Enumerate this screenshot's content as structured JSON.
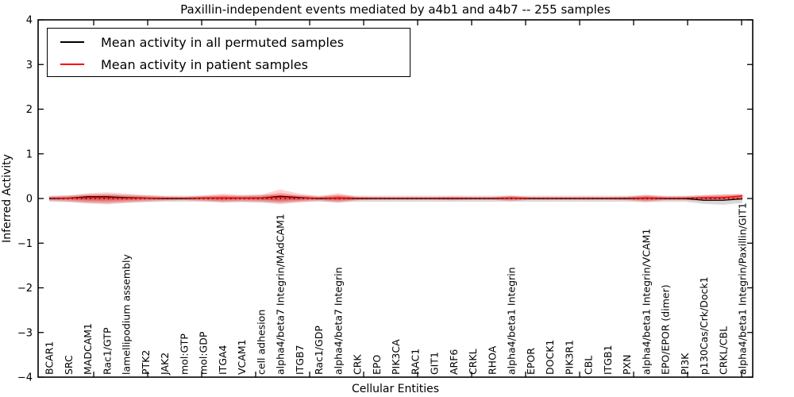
{
  "chart_data": {
    "type": "line",
    "title": "Paxillin-independent events mediated by a4b1 and a4b7 -- 255 samples",
    "xlabel": "Cellular Entities",
    "ylabel": "Inferred Activity",
    "ylim": [
      -4,
      4
    ],
    "yticks": [
      "4",
      "3",
      "2",
      "1",
      "0",
      "−1",
      "−2",
      "−3",
      "−4"
    ],
    "grid": false,
    "legend_position": "upper left",
    "categories": [
      "BCAR1",
      "SRC",
      "MADCAM1",
      "Rac1/GTP",
      "lamellipodium assembly",
      "PTK2",
      "JAK2",
      "mol:GTP",
      "mol:GDP",
      "ITGA4",
      "VCAM1",
      "cell adhesion",
      "alpha4/beta7 Integrin/MAdCAM1",
      "ITGB7",
      "Rac1/GDP",
      "alpha4/beta7 Integrin",
      "CRK",
      "EPO",
      "PIK3CA",
      "RAC1",
      "GIT1",
      "ARF6",
      "CRKL",
      "RHOA",
      "alpha4/beta1 Integrin",
      "EPOR",
      "DOCK1",
      "PIK3R1",
      "CBL",
      "ITGB1",
      "PXN",
      "alpha4/beta1 Integrin/VCAM1",
      "EPO/EPOR (dimer)",
      "PI3K",
      "p130Cas/Crk/Dock1",
      "CRKL/CBL",
      "alpha4/beta1 Integrin/Paxillin/GIT1"
    ],
    "series": [
      {
        "name": "Mean activity in all permuted samples",
        "color": "#000000",
        "values": [
          0,
          0.01,
          0.04,
          0.04,
          0.02,
          0.01,
          0,
          0,
          0.01,
          0.01,
          0.01,
          0.01,
          0.05,
          0.02,
          0,
          0.01,
          0,
          0,
          0,
          0,
          0,
          0,
          0,
          0,
          0.01,
          0,
          0,
          0,
          0,
          0,
          0,
          0.01,
          0,
          0,
          -0.04,
          -0.04,
          -0.01
        ]
      },
      {
        "name": "Mean activity in patient samples",
        "color": "#ff0000",
        "values": [
          0.01,
          0.01,
          0.02,
          0.02,
          0.01,
          0.01,
          0.01,
          0.01,
          0.01,
          0.01,
          0.01,
          0.01,
          0.03,
          0.01,
          0.01,
          0.01,
          0.01,
          0.01,
          0.01,
          0.01,
          0.01,
          0.01,
          0.01,
          0.01,
          0.01,
          0.01,
          0.01,
          0.01,
          0.01,
          0.01,
          0.01,
          0.01,
          0.01,
          0.01,
          0.02,
          0.02,
          0.06
        ]
      }
    ],
    "bands": [
      {
        "name": "permuted-range",
        "color": "rgba(130,130,130,0.30)",
        "upper": [
          0.06,
          0.07,
          0.09,
          0.1,
          0.08,
          0.07,
          0.06,
          0.06,
          0.06,
          0.07,
          0.07,
          0.08,
          0.09,
          0.07,
          0.06,
          0.07,
          0.06,
          0.06,
          0.06,
          0.06,
          0.06,
          0.06,
          0.06,
          0.06,
          0.06,
          0.06,
          0.06,
          0.06,
          0.06,
          0.06,
          0.06,
          0.07,
          0.06,
          0.06,
          0.07,
          0.08,
          0.09
        ],
        "lower": [
          -0.07,
          -0.08,
          -0.1,
          -0.11,
          -0.09,
          -0.08,
          -0.07,
          -0.07,
          -0.07,
          -0.08,
          -0.08,
          -0.09,
          -0.1,
          -0.08,
          -0.07,
          -0.08,
          -0.07,
          -0.07,
          -0.07,
          -0.07,
          -0.07,
          -0.07,
          -0.07,
          -0.07,
          -0.07,
          -0.07,
          -0.07,
          -0.07,
          -0.07,
          -0.07,
          -0.07,
          -0.08,
          -0.07,
          -0.07,
          -0.12,
          -0.14,
          -0.1
        ]
      },
      {
        "name": "patient-range-outer",
        "color": "rgba(255,0,0,0.17)",
        "upper": [
          0.05,
          0.07,
          0.12,
          0.14,
          0.11,
          0.08,
          0.05,
          0.04,
          0.07,
          0.11,
          0.08,
          0.09,
          0.2,
          0.11,
          0.05,
          0.12,
          0.04,
          0.03,
          0.03,
          0.03,
          0.03,
          0.04,
          0.03,
          0.03,
          0.07,
          0.03,
          0.03,
          0.03,
          0.03,
          0.03,
          0.04,
          0.09,
          0.05,
          0.05,
          0.08,
          0.1,
          0.11
        ],
        "lower": [
          -0.05,
          -0.07,
          -0.11,
          -0.13,
          -0.1,
          -0.07,
          -0.05,
          -0.04,
          -0.06,
          -0.09,
          -0.07,
          -0.08,
          -0.13,
          -0.08,
          -0.05,
          -0.1,
          -0.04,
          -0.03,
          -0.03,
          -0.03,
          -0.03,
          -0.04,
          -0.03,
          -0.03,
          -0.06,
          -0.03,
          -0.03,
          -0.03,
          -0.03,
          -0.03,
          -0.04,
          -0.08,
          -0.04,
          -0.04,
          -0.05,
          -0.04,
          -0.03
        ]
      },
      {
        "name": "patient-range-mid",
        "color": "rgba(255,0,0,0.22)",
        "upper": [
          0.03,
          0.045,
          0.08,
          0.09,
          0.07,
          0.05,
          0.03,
          0.025,
          0.045,
          0.07,
          0.05,
          0.06,
          0.13,
          0.07,
          0.03,
          0.08,
          0.025,
          0.02,
          0.02,
          0.02,
          0.02,
          0.025,
          0.02,
          0.02,
          0.045,
          0.02,
          0.02,
          0.02,
          0.02,
          0.02,
          0.025,
          0.06,
          0.03,
          0.03,
          0.05,
          0.065,
          0.075
        ],
        "lower": [
          -0.03,
          -0.045,
          -0.07,
          -0.08,
          -0.06,
          -0.045,
          -0.03,
          -0.025,
          -0.04,
          -0.06,
          -0.045,
          -0.05,
          -0.08,
          -0.05,
          -0.03,
          -0.065,
          -0.025,
          -0.02,
          -0.02,
          -0.02,
          -0.02,
          -0.025,
          -0.02,
          -0.02,
          -0.04,
          -0.02,
          -0.02,
          -0.02,
          -0.02,
          -0.02,
          -0.025,
          -0.05,
          -0.027,
          -0.027,
          -0.033,
          -0.027,
          -0.02
        ]
      },
      {
        "name": "patient-range-inner",
        "color": "rgba(255,0,0,0.35)",
        "upper": [
          0.015,
          0.025,
          0.045,
          0.05,
          0.04,
          0.03,
          0.015,
          0.015,
          0.025,
          0.04,
          0.03,
          0.035,
          0.07,
          0.04,
          0.015,
          0.045,
          0.015,
          0.012,
          0.012,
          0.012,
          0.012,
          0.015,
          0.012,
          0.012,
          0.025,
          0.012,
          0.012,
          0.012,
          0.012,
          0.012,
          0.015,
          0.035,
          0.018,
          0.018,
          0.03,
          0.04,
          0.05
        ],
        "lower": [
          -0.015,
          -0.025,
          -0.04,
          -0.045,
          -0.035,
          -0.025,
          -0.015,
          -0.015,
          -0.02,
          -0.035,
          -0.025,
          -0.03,
          -0.045,
          -0.03,
          -0.015,
          -0.035,
          -0.015,
          -0.012,
          -0.012,
          -0.012,
          -0.012,
          -0.015,
          -0.012,
          -0.012,
          -0.022,
          -0.012,
          -0.012,
          -0.012,
          -0.012,
          -0.012,
          -0.015,
          -0.03,
          -0.015,
          -0.015,
          -0.02,
          -0.015,
          -0.012
        ]
      }
    ],
    "zero_line": {
      "y": 0,
      "style": "dotted",
      "color": "#000000"
    }
  },
  "legend": {
    "entries": [
      {
        "label": "Mean activity in all permuted samples",
        "color": "#000000"
      },
      {
        "label": "Mean activity in patient samples",
        "color": "#ff0000"
      }
    ]
  }
}
